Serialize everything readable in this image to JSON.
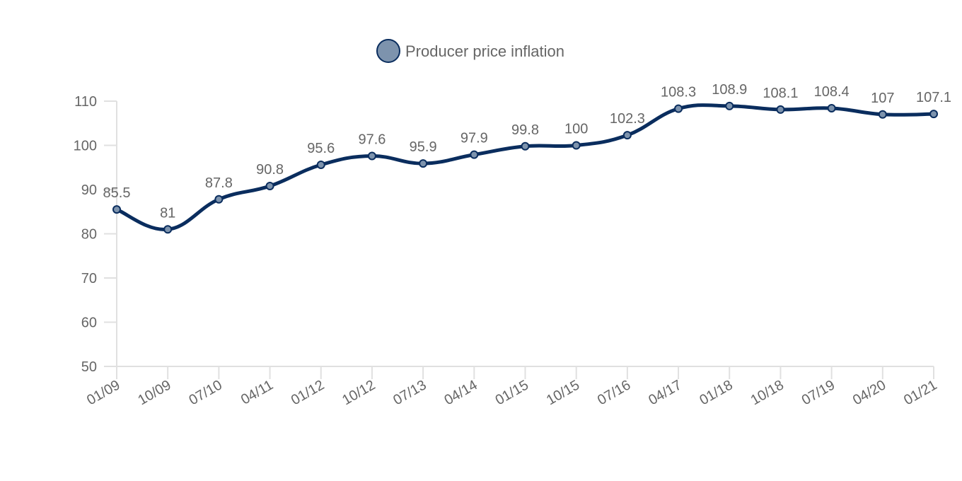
{
  "chart_data": {
    "type": "line",
    "categories": [
      "01/09",
      "10/09",
      "07/10",
      "04/11",
      "01/12",
      "10/12",
      "07/13",
      "04/14",
      "01/15",
      "10/15",
      "07/16",
      "04/17",
      "01/18",
      "10/18",
      "07/19",
      "04/20",
      "01/21"
    ],
    "series": [
      {
        "name": "Producer price inflation",
        "values": [
          85.5,
          81,
          87.8,
          90.8,
          95.6,
          97.6,
          95.9,
          97.9,
          99.8,
          100,
          102.3,
          108.3,
          108.9,
          108.1,
          108.4,
          107,
          107.1
        ],
        "data_labels": [
          "85.5",
          "81",
          "87.8",
          "90.8",
          "95.6",
          "97.6",
          "95.9",
          "97.9",
          "99.8",
          "100",
          "102.3",
          "108.3",
          "108.9",
          "108.1",
          "108.4",
          "107",
          "107.1"
        ]
      }
    ],
    "ylim": [
      50,
      110
    ],
    "yticks": [
      "50",
      "60",
      "70",
      "80",
      "90",
      "100",
      "110"
    ],
    "grid": false,
    "legend": "top-center",
    "colors": {
      "line": "#0a2d5e",
      "marker_fill": "#7d93ad",
      "axis": "#e0e0e0",
      "text": "#666666"
    }
  }
}
